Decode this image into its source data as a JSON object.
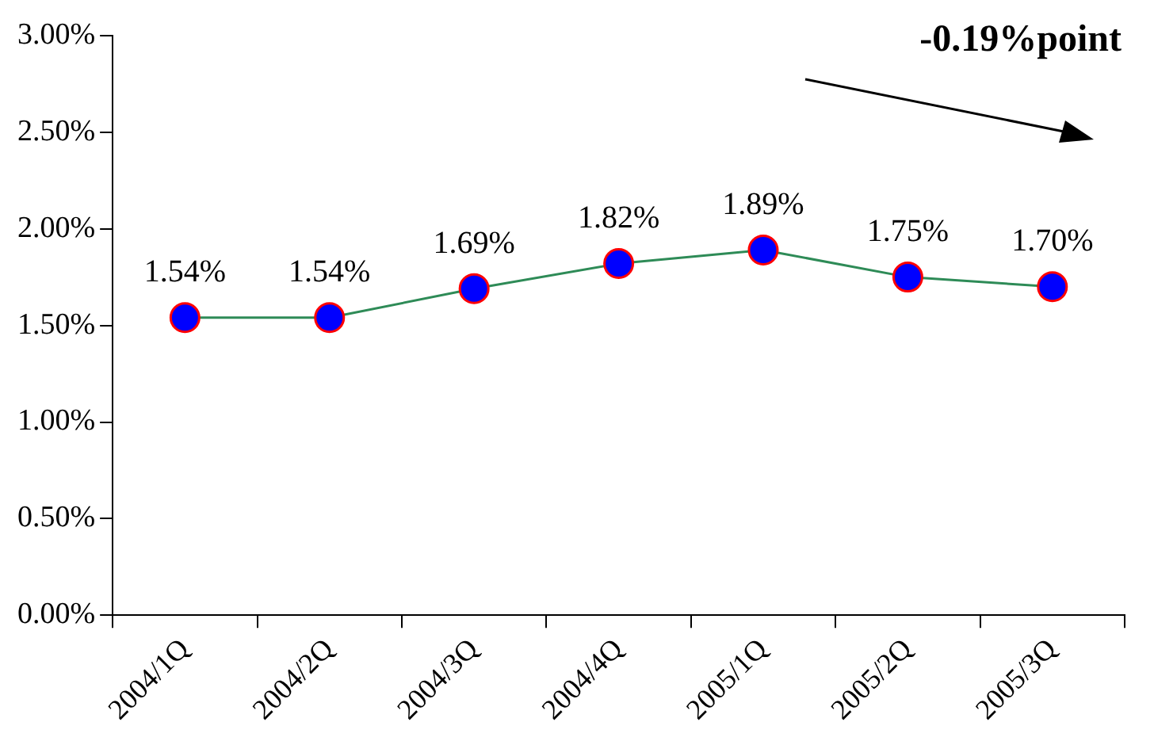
{
  "chart_data": {
    "type": "line",
    "categories": [
      "2004/1Q",
      "2004/2Q",
      "2004/3Q",
      "2004/4Q",
      "2005/1Q",
      "2005/2Q",
      "2005/3Q"
    ],
    "series": [
      {
        "color": "#2e8b57",
        "values": [
          1.54,
          1.54,
          1.69,
          1.82,
          1.89,
          1.75,
          1.7
        ],
        "value_labels": [
          "1.54%",
          "1.54%",
          "1.69%",
          "1.82%",
          "1.89%",
          "1.75%",
          "1.70%"
        ]
      }
    ],
    "ylim": [
      0,
      3
    ],
    "yticks": [
      {
        "value": 0,
        "label": "0.00%"
      },
      {
        "value": 0.5,
        "label": "0.50%"
      },
      {
        "value": 1,
        "label": "1.00%"
      },
      {
        "value": 1.5,
        "label": "1.50%"
      },
      {
        "value": 2,
        "label": "2.00%"
      },
      {
        "value": 2.5,
        "label": "2.50%"
      },
      {
        "value": 3,
        "label": "3.00%"
      }
    ],
    "annotations": [
      "-0.19%point"
    ],
    "marker": "circle",
    "grid": false,
    "legend": false
  }
}
